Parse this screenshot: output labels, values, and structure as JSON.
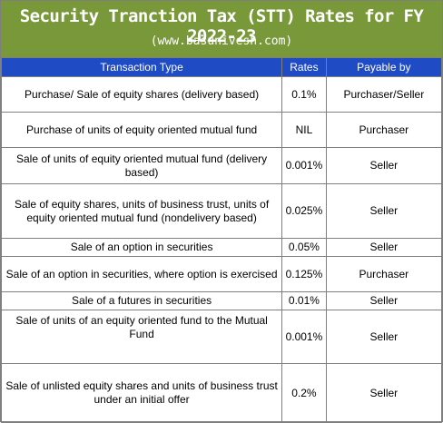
{
  "banner": {
    "title": "Security Tranction Tax (STT) Rates for FY 2022-23",
    "subtitle": "(www.basunivesh.com)"
  },
  "table": {
    "headers": {
      "type": "Transaction Type",
      "rates": "Rates",
      "payable": "Payable by"
    },
    "rows": [
      {
        "type": "Purchase/ Sale of equity shares (delivery based)",
        "rate": "0.1%",
        "payable": "Purchaser/Seller"
      },
      {
        "type": "Purchase of units of equity oriented mutual fund",
        "rate": "NIL",
        "payable": "Purchaser"
      },
      {
        "type": "Sale of units of equity oriented mutual fund (delivery based)",
        "rate": "0.001%",
        "payable": "Seller"
      },
      {
        "type": "Sale of equity shares, units of business trust, units of equity oriented mutual fund (nondelivery based)",
        "rate": "0.025%",
        "payable": "Seller"
      },
      {
        "type": "Sale of an option in securities",
        "rate": "0.05%",
        "payable": "Seller"
      },
      {
        "type": "Sale of an option in securities, where option is exercised",
        "rate": "0.125%",
        "payable": "Purchaser"
      },
      {
        "type": "Sale of a futures in securities",
        "rate": "0.01%",
        "payable": "Seller"
      },
      {
        "type": "Sale of units of an equity oriented fund to the Mutual Fund",
        "rate": "0.001%",
        "payable": "Seller"
      },
      {
        "type": "Sale of unlisted equity shares and units of business trust under an initial offer",
        "rate": "0.2%",
        "payable": "Seller"
      }
    ]
  }
}
